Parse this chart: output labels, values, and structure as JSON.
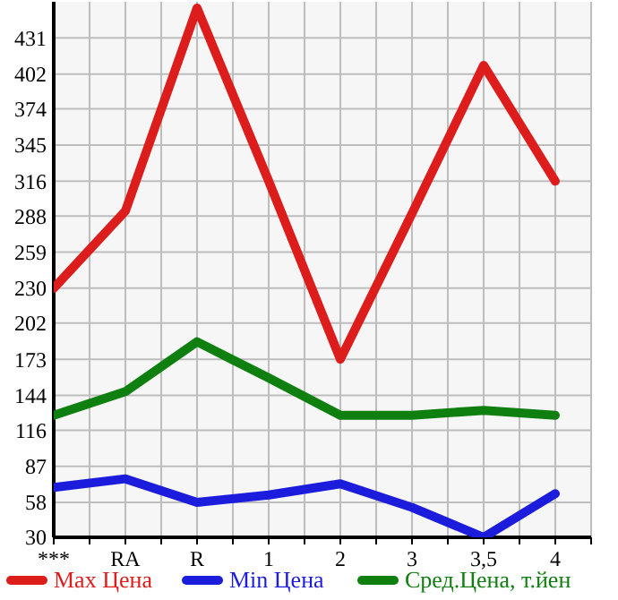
{
  "chart_data": {
    "type": "line",
    "categories": [
      "***",
      "RA",
      "R",
      "1",
      "2",
      "3",
      "3,5",
      "4"
    ],
    "series": [
      {
        "name": "Max Цена",
        "color": "#dd1c1c",
        "values": [
          230,
          292,
          455,
          316,
          173,
          290,
          409,
          316
        ]
      },
      {
        "name": "Min Цена",
        "color": "#1c1cdd",
        "values": [
          70,
          77,
          58,
          64,
          73,
          54,
          30,
          65
        ]
      },
      {
        "name": "Сред.Цена, т.йен",
        "color": "#0f7f0f",
        "values": [
          128,
          147,
          187,
          158,
          128,
          128,
          132,
          128
        ]
      }
    ],
    "ylim": [
      30,
      460
    ],
    "yticks": [
      30,
      58,
      87,
      116,
      144,
      173,
      202,
      230,
      259,
      288,
      316,
      345,
      374,
      402,
      431
    ],
    "grid": true,
    "legend": "bottom",
    "marker": "none",
    "line_style": "solid"
  }
}
